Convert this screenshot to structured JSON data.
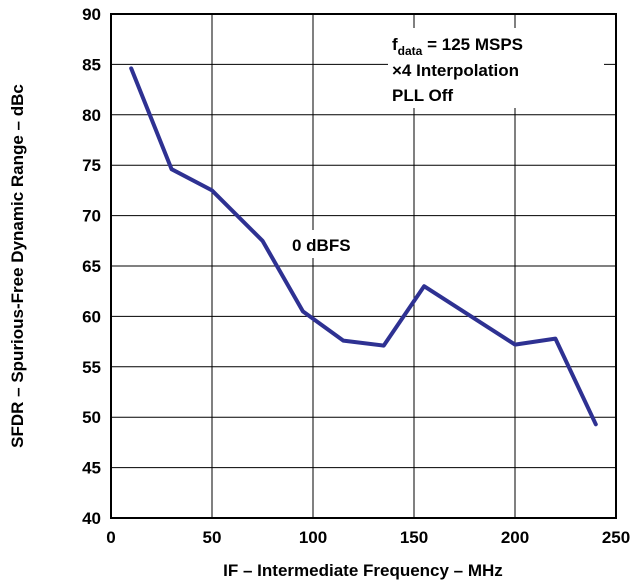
{
  "chart_data": {
    "type": "line",
    "xlabel": "IF – Intermediate Frequency – MHz",
    "ylabel": "SFDR – Spurious-Free Dynamic Range – dBc",
    "xlim": [
      0,
      250
    ],
    "ylim": [
      40,
      90
    ],
    "xticks": [
      0,
      50,
      100,
      150,
      200,
      250
    ],
    "yticks": [
      40,
      45,
      50,
      55,
      60,
      65,
      70,
      75,
      80,
      85,
      90
    ],
    "grid": true,
    "line_color": "#2e3192",
    "series": [
      {
        "label": "0 dBFS",
        "x": [
          10,
          30,
          50,
          75,
          95,
          115,
          135,
          155,
          200,
          220,
          240
        ],
        "y": [
          84.6,
          74.6,
          72.5,
          67.5,
          60.5,
          57.6,
          57.1,
          63.0,
          57.2,
          57.8,
          49.3
        ]
      }
    ],
    "annotations": {
      "conditions_line1_main": "f",
      "conditions_line1_sub": "data",
      "conditions_line1_rest": " = 125 MSPS",
      "conditions_line2": "×4 Interpolation",
      "conditions_line3": "PLL Off"
    }
  }
}
